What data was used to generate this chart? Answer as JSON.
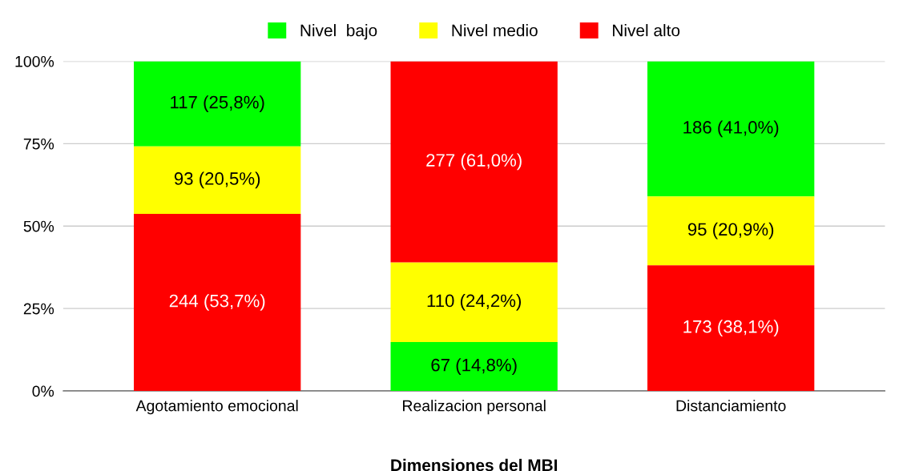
{
  "chart_data": {
    "type": "bar",
    "xlabel": "Dimensiones del MBI",
    "categories": [
      "Agotamiento emocional",
      "Realizacion personal",
      "Distanciamiento"
    ],
    "series": [
      {
        "name": "Nivel  bajo",
        "color": "#00ff00",
        "values": [
          25.8,
          14.8,
          41.0
        ],
        "base": [
          74.2,
          0,
          59.0
        ],
        "value_labels": [
          "117 (25,8%)",
          "67 (14,8%)",
          "186 (41,0%)"
        ]
      },
      {
        "name": "Nivel medio",
        "color": "#ffff00",
        "values": [
          20.5,
          24.2,
          20.9
        ],
        "base": [
          53.7,
          14.8,
          38.1
        ],
        "value_labels": [
          "93 (20,5%)",
          "110 (24,2%)",
          "95 (20,9%)"
        ]
      },
      {
        "name": "Nivel alto",
        "color": "#ff0000",
        "values": [
          53.7,
          61.0,
          38.1
        ],
        "base": [
          0,
          39.0,
          0
        ],
        "value_labels": [
          "244 (53,7%)",
          "277 (61,0%)",
          "173 (38,1%)"
        ]
      }
    ],
    "ylim": [
      0,
      100
    ],
    "yticks": [
      {
        "value": 0,
        "label": "0%"
      },
      {
        "value": 25,
        "label": "25%"
      },
      {
        "value": 50,
        "label": "50%"
      },
      {
        "value": 75,
        "label": "75%"
      },
      {
        "value": 100,
        "label": "100%"
      }
    ],
    "grid": "y",
    "legend": "top"
  }
}
